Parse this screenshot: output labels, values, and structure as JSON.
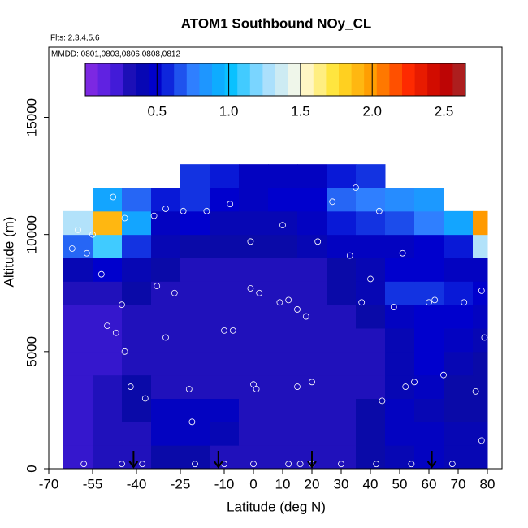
{
  "chart_data": {
    "type": "heatmap",
    "title": "ATOM1 Southbound NOy_CL",
    "annotations": [
      "Flts: 2,3,4,5,6",
      "MMDD: 0801,0803,0806,0808,0812"
    ],
    "x_label": "Latitude (deg N)",
    "y_label": "Altitude (m)",
    "xlim": [
      -70,
      85
    ],
    "ylim": [
      0,
      18000
    ],
    "xticks": [
      -70,
      -55,
      -40,
      -25,
      -10,
      0,
      10,
      20,
      30,
      40,
      50,
      60,
      70,
      80
    ],
    "yticks": [
      0,
      5000,
      10000,
      15000
    ],
    "x_bins": [
      -65,
      -55,
      -45,
      -35,
      -25,
      -15,
      -5,
      5,
      15,
      25,
      35,
      45,
      55,
      65,
      75,
      80
    ],
    "y_bins": [
      0,
      1000,
      2000,
      3000,
      4000,
      5000,
      6000,
      7000,
      8000,
      9000,
      10000,
      11000,
      12000,
      13000
    ],
    "values": [
      [
        0.25,
        0.3,
        0.3,
        0.35,
        0.35,
        0.3,
        0.3,
        0.3,
        0.3,
        0.3,
        0.35,
        0.4,
        0.45,
        0.4,
        0.4
      ],
      [
        0.25,
        0.3,
        0.3,
        0.45,
        0.45,
        0.4,
        0.3,
        0.3,
        0.3,
        0.3,
        0.35,
        0.45,
        0.45,
        0.4,
        0.4
      ],
      [
        0.25,
        0.3,
        0.35,
        0.45,
        0.45,
        0.45,
        0.3,
        0.3,
        0.3,
        0.3,
        0.35,
        0.45,
        0.4,
        0.35,
        0.35
      ],
      [
        0.25,
        0.3,
        0.35,
        0.3,
        0.3,
        0.3,
        0.3,
        0.3,
        0.3,
        0.3,
        0.3,
        0.4,
        0.45,
        0.35,
        0.35
      ],
      [
        0.25,
        0.25,
        0.3,
        0.3,
        0.3,
        0.3,
        0.3,
        0.3,
        0.3,
        0.3,
        0.3,
        0.4,
        0.5,
        0.4,
        0.35
      ],
      [
        0.25,
        0.25,
        0.3,
        0.3,
        0.3,
        0.3,
        0.3,
        0.3,
        0.3,
        0.3,
        0.3,
        0.4,
        0.5,
        0.45,
        0.4
      ],
      [
        0.25,
        0.25,
        0.3,
        0.3,
        0.3,
        0.3,
        0.3,
        0.3,
        0.3,
        0.3,
        0.35,
        0.45,
        0.5,
        0.5,
        0.45
      ],
      [
        0.3,
        0.3,
        0.35,
        0.3,
        0.3,
        0.3,
        0.3,
        0.3,
        0.3,
        0.35,
        0.4,
        0.6,
        0.6,
        0.55,
        0.5
      ],
      [
        0.4,
        0.5,
        0.4,
        0.35,
        0.3,
        0.3,
        0.3,
        0.3,
        0.3,
        0.35,
        0.4,
        0.5,
        0.5,
        0.45,
        0.45
      ],
      [
        0.7,
        1.1,
        0.6,
        0.4,
        0.35,
        0.35,
        0.35,
        0.35,
        0.4,
        0.45,
        0.45,
        0.45,
        0.5,
        0.55,
        1.3
      ],
      [
        1.3,
        1.9,
        0.9,
        0.45,
        0.5,
        0.4,
        0.4,
        0.4,
        0.45,
        0.55,
        0.6,
        0.65,
        0.75,
        0.9,
        2.0
      ],
      [
        null,
        0.9,
        0.7,
        0.55,
        0.6,
        0.5,
        0.45,
        0.5,
        0.5,
        0.7,
        0.75,
        0.8,
        0.85,
        null,
        null
      ],
      [
        null,
        null,
        null,
        null,
        0.6,
        0.55,
        0.45,
        0.45,
        0.45,
        0.55,
        0.6,
        null,
        null,
        null,
        null
      ]
    ],
    "colorscale": {
      "lim": [
        0,
        2.65
      ],
      "stops": [
        0,
        0.2,
        0.35,
        0.5,
        0.75,
        1.0,
        1.25,
        1.5,
        1.75,
        2.0,
        2.25,
        2.5,
        2.65
      ],
      "colors": [
        "#8a2be2",
        "#4b1ee0",
        "#0a0aa8",
        "#0000cd",
        "#2f7fff",
        "#00bfff",
        "#9fdcff",
        "#fffbe6",
        "#ffe22a",
        "#ff9a00",
        "#ff2a00",
        "#c00000",
        "#a52a2a"
      ],
      "ticks": [
        0.5,
        {
          "value": 1,
          "label": "1.0"
        },
        1.5,
        {
          "value": 2,
          "label": "2.0"
        },
        2.5
      ]
    },
    "points": {
      "x": [
        -68,
        -62,
        -57,
        -52,
        -50,
        -47,
        -44,
        -42,
        -37,
        -33,
        -30,
        -27,
        -22,
        -16,
        -10,
        -7,
        -1,
        0,
        1,
        2,
        9,
        12,
        15,
        18,
        20,
        27,
        33,
        37,
        40,
        44,
        48,
        52,
        55,
        60,
        65,
        72,
        78,
        79,
        -60,
        -55,
        -48,
        -44,
        -45,
        -34,
        -30,
        -24,
        -21,
        -8,
        -1,
        0,
        10,
        15,
        22,
        35,
        43,
        51,
        62,
        76,
        78,
        -58,
        -45,
        -38,
        -20,
        -10,
        12,
        16,
        20,
        30,
        42,
        54,
        68
      ],
      "y": [
        10200,
        9400,
        9200,
        8300,
        6100,
        5800,
        5000,
        3500,
        3000,
        7800,
        5600,
        7500,
        3400,
        11000,
        5900,
        5900,
        7700,
        3600,
        3400,
        7500,
        7100,
        7200,
        6800,
        6500,
        3700,
        11400,
        9100,
        7100,
        8100,
        2900,
        6900,
        3500,
        3700,
        7100,
        4000,
        7100,
        7600,
        5600,
        10200,
        10000,
        11600,
        10700,
        7000,
        10800,
        11100,
        11000,
        2000,
        11300,
        9700,
        200,
        10400,
        3500,
        9700,
        12000,
        11000,
        9200,
        7200,
        3300,
        1200,
        200,
        200,
        200,
        200,
        200,
        200,
        200,
        200,
        200,
        200,
        200,
        200
      ]
    },
    "arrows_x": [
      -41,
      -12,
      20,
      61
    ]
  }
}
